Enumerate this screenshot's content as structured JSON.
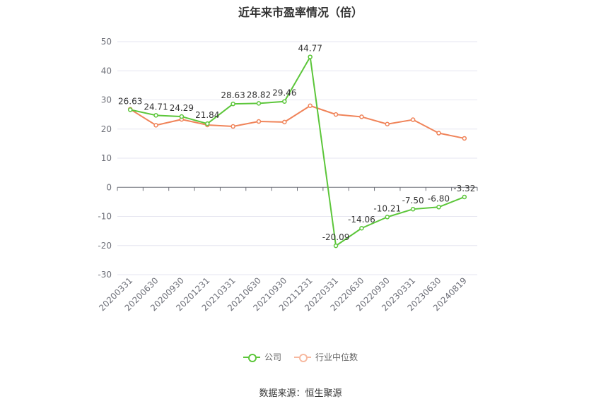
{
  "title": "近年来市盈率情况（倍）",
  "source": "数据来源：恒生聚源",
  "chart_data": {
    "type": "line",
    "title": "近年来市盈率情况（倍）",
    "xlabel": "",
    "ylabel": "",
    "ylim": [
      -30,
      50
    ],
    "yticks": [
      50,
      40,
      30,
      20,
      10,
      0,
      -10,
      -20,
      -30
    ],
    "grid": true,
    "legend_position": "bottom",
    "categories": [
      "20200331",
      "20200630",
      "20200930",
      "20201231",
      "20210331",
      "20210630",
      "20210930",
      "20211231",
      "20220331",
      "20220630",
      "20220930",
      "20230331",
      "20230630",
      "20240819"
    ],
    "series": [
      {
        "name": "公司",
        "color": "#5cc63a",
        "values": [
          26.63,
          24.71,
          24.29,
          21.84,
          28.63,
          28.82,
          29.46,
          44.77,
          -20.09,
          -14.06,
          -10.21,
          -7.5,
          -6.8,
          -3.32
        ],
        "labels": [
          "26.63",
          "24.71",
          "24.29",
          "21.84",
          "28.63",
          "28.82",
          "29.46",
          "44.77",
          "-20.09",
          "-14.06",
          "-10.21",
          "-7.50",
          "-6.80",
          "-3.32"
        ]
      },
      {
        "name": "行业中位数",
        "color": "#f0845a",
        "values": [
          26.8,
          21.3,
          23.3,
          21.4,
          20.9,
          22.6,
          22.4,
          28.0,
          25.0,
          24.2,
          21.7,
          23.2,
          18.6,
          16.8
        ]
      }
    ]
  }
}
